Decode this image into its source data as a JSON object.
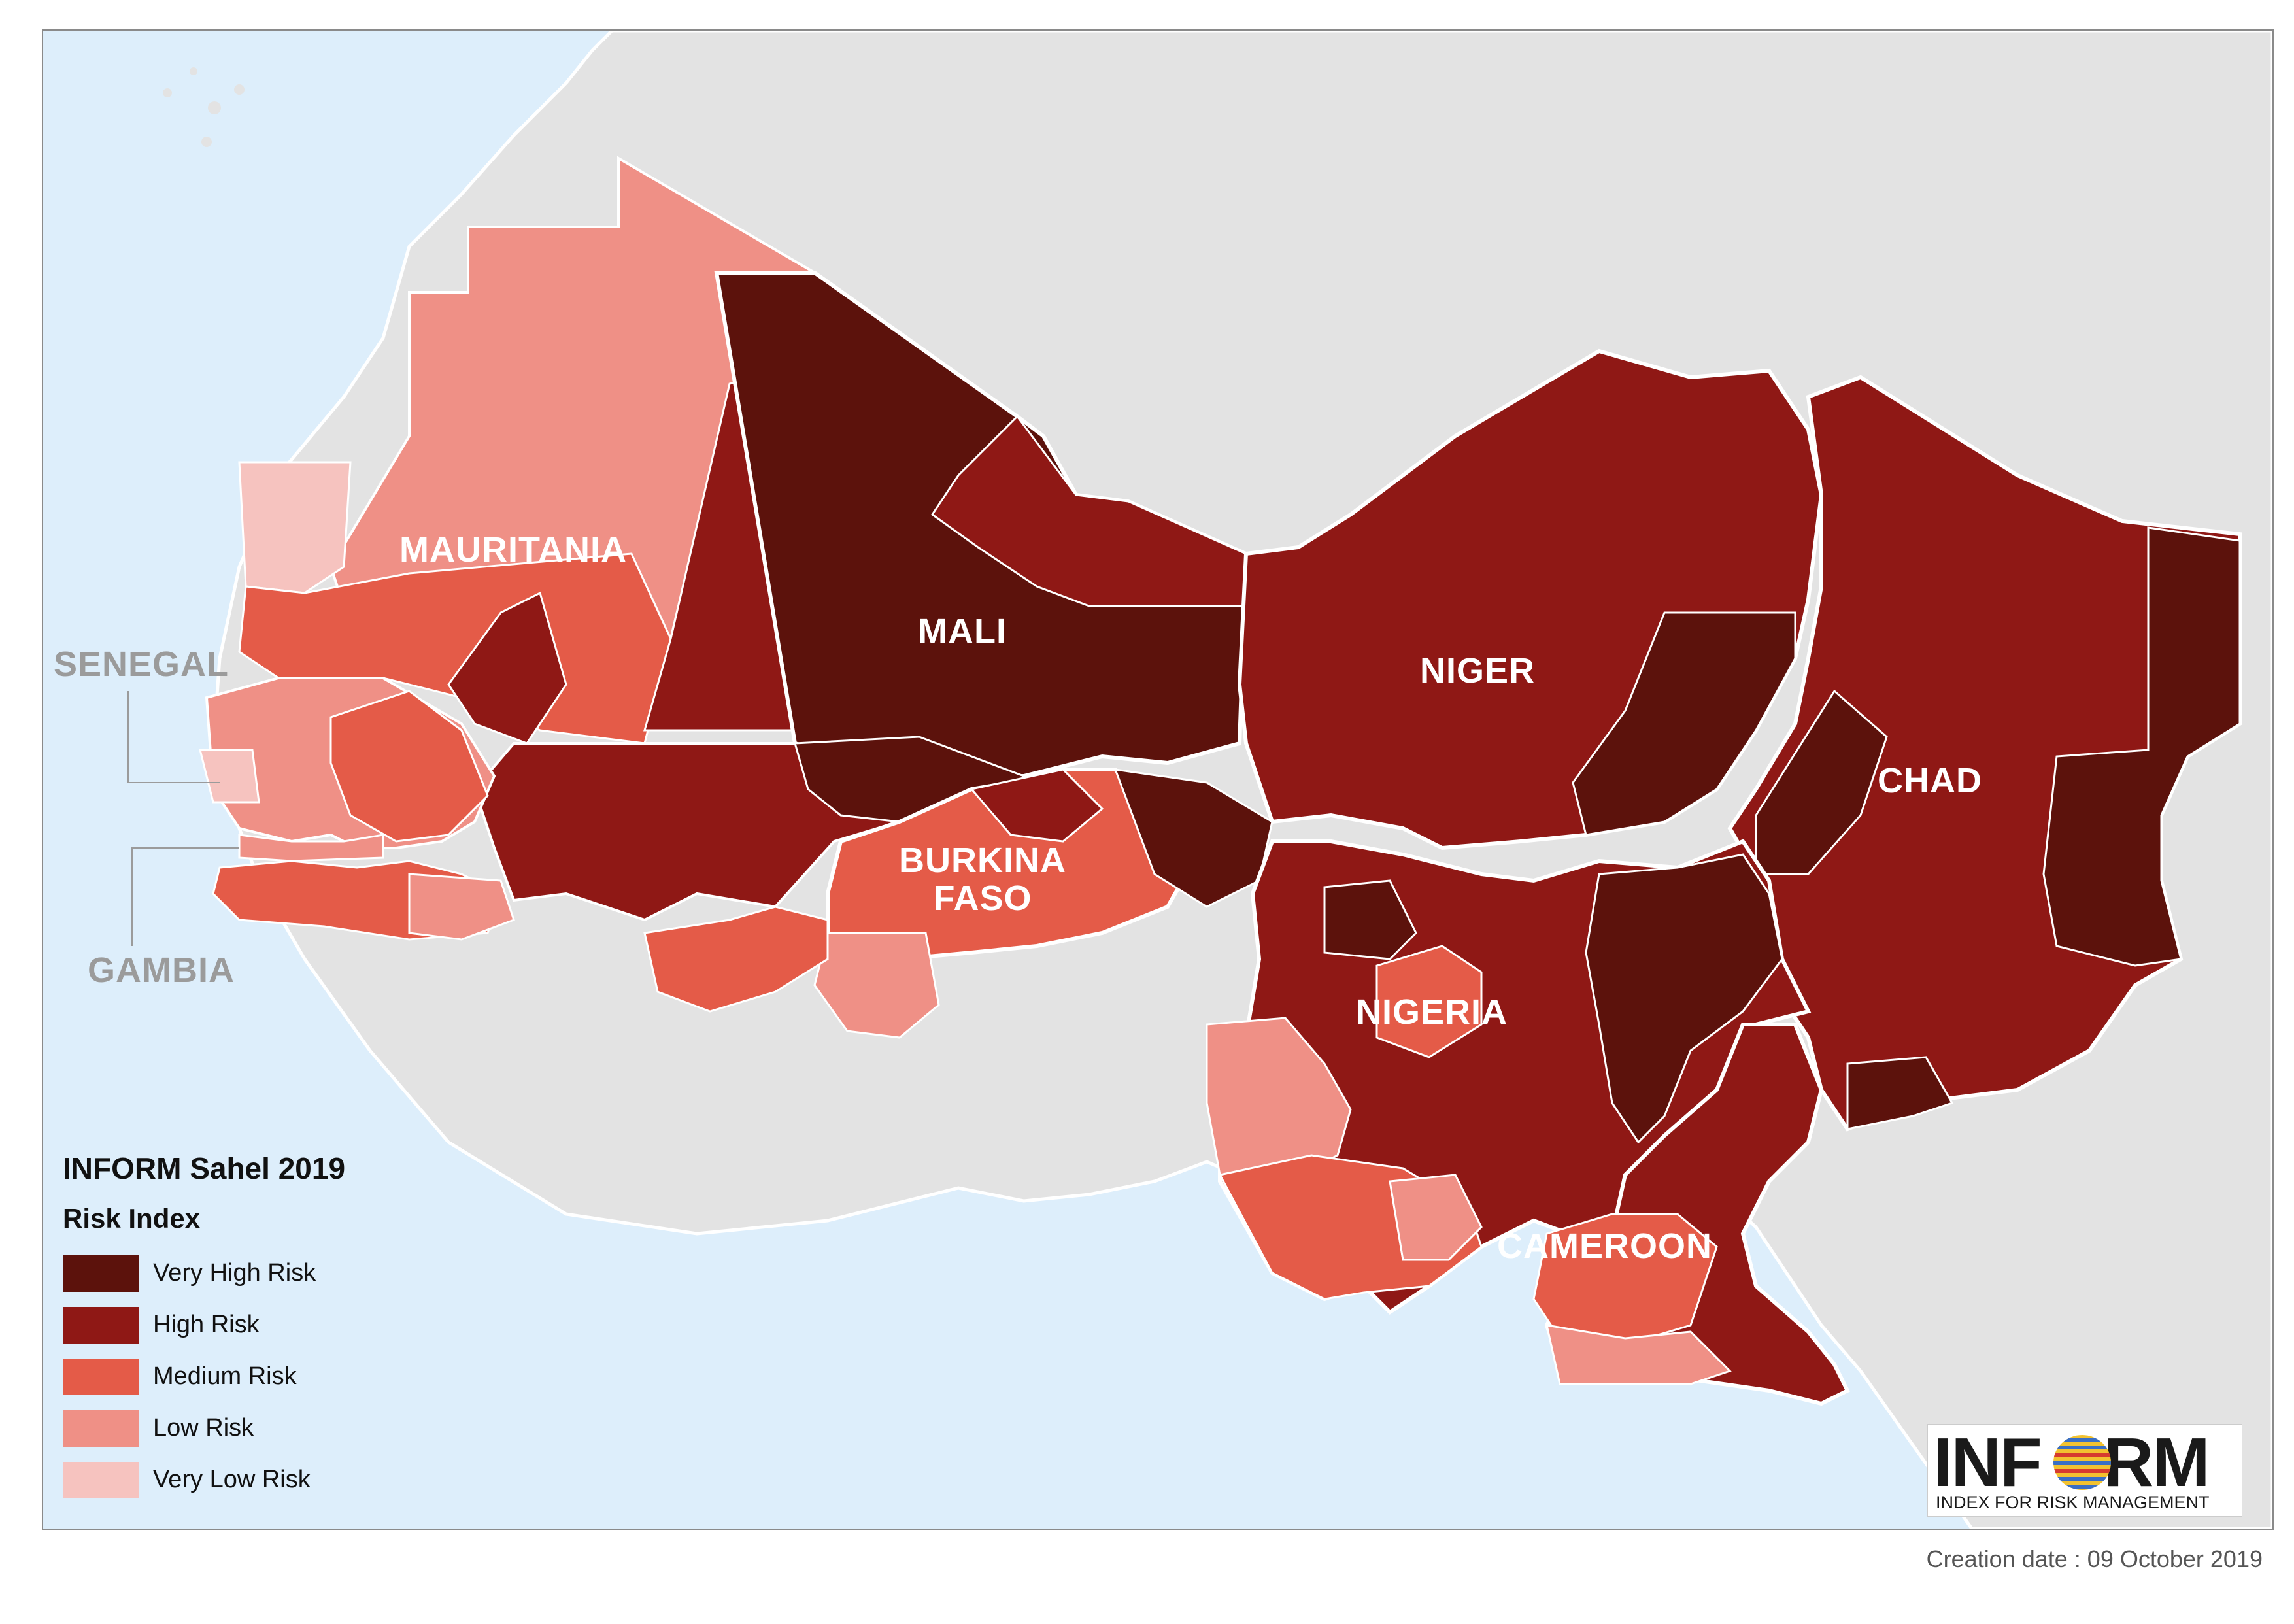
{
  "legend": {
    "title": "INFORM Sahel 2019",
    "subtitle": "Risk Index",
    "items": [
      {
        "label": "Very High Risk",
        "color": "#5c120c"
      },
      {
        "label": "High Risk",
        "color": "#8f1815"
      },
      {
        "label": "Medium Risk",
        "color": "#e45b48"
      },
      {
        "label": "Low Risk",
        "color": "#ef9086"
      },
      {
        "label": "Very Low Risk",
        "color": "#f6c3bf"
      }
    ]
  },
  "countries": {
    "mauritania": "MAURITANIA",
    "senegal": "SENEGAL",
    "gambia": "GAMBIA",
    "mali": "MALI",
    "niger": "NIGER",
    "chad": "CHAD",
    "burkina_faso_line1": "BURKINA",
    "burkina_faso_line2": "FASO",
    "nigeria": "NIGERIA",
    "cameroon": "CAMEROON"
  },
  "logo": {
    "word_part1": "INF",
    "word_part2": "RM",
    "tagline": "INDEX FOR RISK MANAGEMENT"
  },
  "creation_date": "Creation date : 09 October 2019",
  "colors": {
    "ocean": "#ddeefb",
    "land_outside": "#e3e3e3",
    "border": "#ffffff"
  }
}
